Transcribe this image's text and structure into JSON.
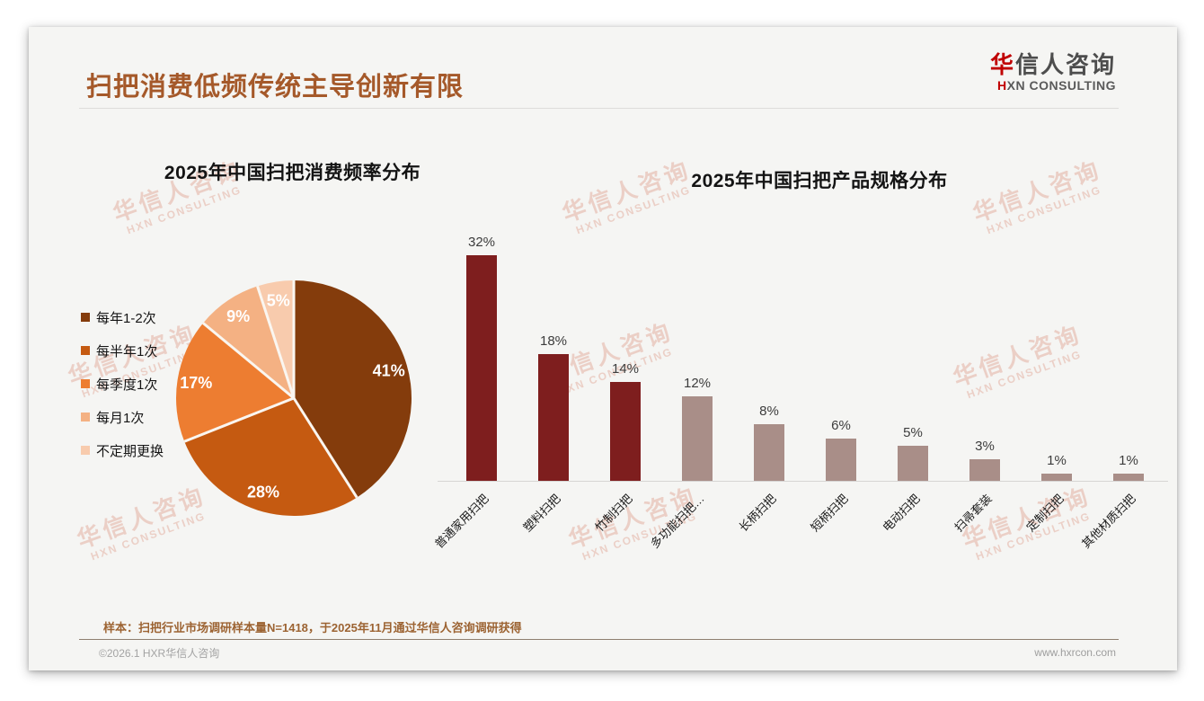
{
  "slide": {
    "title": "扫把消费低频传统主导创新有限",
    "logo": {
      "cn_accent": "华",
      "cn_rest": "信人咨询",
      "en_accent": "H",
      "en_rest": "XN CONSULTING"
    },
    "watermark": {
      "line1": "华信人咨询",
      "line2": "HXN CONSULTING"
    },
    "footer": {
      "sample_note": "样本：扫把行业市场调研样本量N=1418，于2025年11月通过华信人咨询调研获得",
      "copyright": "©2026.1 HXR华信人咨询",
      "website": "www.hxrcon.com"
    },
    "colors": {
      "title_brown": "#a5592a",
      "logo_red": "#c00000",
      "note_brown": "#9c6332",
      "slide_bg": "#f5f5f3"
    }
  },
  "chart_data": [
    {
      "type": "pie",
      "title": "2025年中国扫把消费频率分布",
      "categories": [
        "每年1-2次",
        "每半年1次",
        "每季度1次",
        "每月1次",
        "不定期更换"
      ],
      "values": [
        41,
        28,
        17,
        9,
        5
      ],
      "unit": "%",
      "colors": [
        "#843c0c",
        "#c55a11",
        "#ed7d31",
        "#f4b183",
        "#f8cbad"
      ],
      "legend_position": "left",
      "labels": "inside, white percent values",
      "start_angle": "12 o'clock, clockwise"
    },
    {
      "type": "bar",
      "title": "2025年中国扫把产品规格分布",
      "categories": [
        "普通家用扫把",
        "塑料扫把",
        "竹制扫把",
        "多功能扫把…",
        "长柄扫把",
        "短柄扫把",
        "电动扫把",
        "扫帚套装",
        "定制扫把",
        "其他材质扫把"
      ],
      "values": [
        32,
        18,
        14,
        12,
        8,
        6,
        5,
        3,
        1,
        1
      ],
      "unit": "%",
      "bar_colors": [
        "#7e1e1e",
        "#7e1e1e",
        "#7e1e1e",
        "#a98e88",
        "#a98e88",
        "#a98e88",
        "#a98e88",
        "#a98e88",
        "#a98e88",
        "#a98e88"
      ],
      "ylim": [
        0,
        35
      ],
      "grid": false,
      "data_labels": true,
      "xlabel": "",
      "ylabel": ""
    }
  ]
}
